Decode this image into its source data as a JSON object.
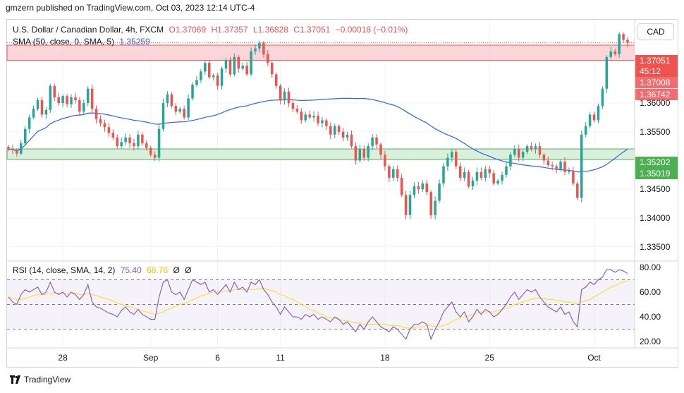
{
  "header": {
    "text": "gmzern published on TradingView.com, Oct 03, 2023 12:14 UTC-4"
  },
  "legend": {
    "symbol": "U.S. Dollar / Canadian Dollar, 4h, FXCM",
    "open": "O1.37069",
    "high": "H1.37357",
    "low": "L1.36828",
    "close": "C1.37051",
    "change": "−0.00018 (−0.01%)",
    "sma_label": "SMA (50, close, 0, SMA, 5)",
    "sma_value": "1.35259",
    "rsi_label": "RSI (14, close, SMA, 14, 2)",
    "rsi_value": "75.40",
    "rsi_sma_value": "68.76",
    "rsi_null1": "Ø",
    "rsi_null2": "Ø"
  },
  "currency_button": "CAD",
  "price_tags": {
    "last": "1.37051",
    "countdown": "45:12",
    "upper_zone": "1.37008",
    "upper_zone_low": "1.36742",
    "green_zone_top": "1.35202",
    "green_zone_bottom": "1.35019"
  },
  "footer": {
    "brand": "TradingView"
  },
  "colors": {
    "up": "#26a69a",
    "down": "#ef5350",
    "sma": "#2962ff",
    "rsi": "#7e57c2",
    "rsi_sma": "#f7e23c"
  },
  "chart_data": [
    {
      "type": "candlestick",
      "title": "U.S. Dollar / Canadian Dollar, 4h, FXCM",
      "y_ticks": [
        "1.36000",
        "1.35500",
        "1.34500",
        "1.34000",
        "1.33500"
      ],
      "ylim": [
        1.3325,
        1.3745
      ],
      "x_ticks": [
        {
          "label": "28",
          "index": 13
        },
        {
          "label": "Sep",
          "index": 34
        },
        {
          "label": "6",
          "index": 50
        },
        {
          "label": "11",
          "index": 65
        },
        {
          "label": "18",
          "index": 90
        },
        {
          "label": "25",
          "index": 115
        },
        {
          "label": "Oct",
          "index": 140
        }
      ],
      "zones": [
        {
          "name": "resistance",
          "from": 1.36742,
          "to": 1.37008,
          "color": "#f8c8cc"
        },
        {
          "name": "support",
          "from": 1.35019,
          "to": 1.35202,
          "color": "#cdebd0"
        }
      ],
      "closes": [
        1.352,
        1.3518,
        1.3512,
        1.353,
        1.3555,
        1.3575,
        1.359,
        1.3605,
        1.358,
        1.3588,
        1.363,
        1.361,
        1.36,
        1.3612,
        1.3598,
        1.361,
        1.3605,
        1.3585,
        1.36,
        1.3625,
        1.359,
        1.3572,
        1.3565,
        1.3558,
        1.3548,
        1.354,
        1.3525,
        1.3532,
        1.354,
        1.353,
        1.3525,
        1.3545,
        1.353,
        1.3522,
        1.351,
        1.3505,
        1.3555,
        1.36,
        1.3615,
        1.3595,
        1.3585,
        1.359,
        1.3575,
        1.3608,
        1.3632,
        1.364,
        1.3655,
        1.367,
        1.3645,
        1.3648,
        1.363,
        1.366,
        1.3675,
        1.365,
        1.368,
        1.366,
        1.3665,
        1.365,
        1.369,
        1.3695,
        1.3705,
        1.3685,
        1.367,
        1.365,
        1.363,
        1.3605,
        1.362,
        1.36,
        1.359,
        1.3585,
        1.357,
        1.358,
        1.3575,
        1.3578,
        1.3565,
        1.357,
        1.356,
        1.3545,
        1.356,
        1.355,
        1.354,
        1.3545,
        1.3525,
        1.35,
        1.352,
        1.3505,
        1.3525,
        1.354,
        1.3528,
        1.351,
        1.349,
        1.347,
        1.3485,
        1.347,
        1.344,
        1.3405,
        1.344,
        1.3455,
        1.345,
        1.346,
        1.3445,
        1.3405,
        1.343,
        1.346,
        1.349,
        1.3505,
        1.3515,
        1.349,
        1.347,
        1.348,
        1.3455,
        1.3465,
        1.348,
        1.347,
        1.3485,
        1.3478,
        1.346,
        1.3465,
        1.3475,
        1.349,
        1.351,
        1.352,
        1.3505,
        1.3515,
        1.3525,
        1.352,
        1.3525,
        1.351,
        1.35,
        1.3492,
        1.349,
        1.3485,
        1.3498,
        1.348,
        1.3482,
        1.346,
        1.3435,
        1.3545,
        1.356,
        1.358,
        1.357,
        1.3595,
        1.3625,
        1.368,
        1.369,
        1.3685,
        1.372,
        1.371,
        1.3705
      ]
    },
    {
      "type": "line",
      "title": "RSI (14, close, SMA, 14, 2)",
      "y_ticks": [
        "80.00",
        "60.00",
        "40.00",
        "20.00"
      ],
      "ylim": [
        15,
        85
      ],
      "bands": [
        70,
        50,
        30
      ],
      "series": [
        {
          "name": "RSI",
          "values": [
            56,
            52,
            50,
            58,
            62,
            60,
            62,
            64,
            58,
            60,
            68,
            60,
            58,
            60,
            56,
            60,
            58,
            54,
            58,
            66,
            52,
            48,
            47,
            45,
            43,
            42,
            40,
            45,
            48,
            44,
            42,
            46,
            42,
            40,
            38,
            38,
            56,
            68,
            70,
            60,
            58,
            60,
            54,
            62,
            70,
            68,
            66,
            68,
            60,
            62,
            58,
            62,
            66,
            60,
            68,
            62,
            64,
            60,
            68,
            66,
            70,
            62,
            58,
            52,
            48,
            42,
            48,
            44,
            40,
            40,
            38,
            42,
            40,
            42,
            38,
            40,
            38,
            36,
            40,
            38,
            34,
            36,
            32,
            28,
            34,
            30,
            36,
            40,
            36,
            32,
            30,
            28,
            32,
            30,
            26,
            22,
            30,
            34,
            34,
            36,
            34,
            22,
            30,
            36,
            44,
            48,
            52,
            44,
            40,
            44,
            36,
            40,
            46,
            42,
            46,
            44,
            40,
            42,
            46,
            50,
            56,
            60,
            54,
            58,
            62,
            60,
            62,
            56,
            52,
            48,
            46,
            44,
            48,
            42,
            44,
            36,
            32,
            62,
            64,
            68,
            66,
            70,
            72,
            78,
            78,
            76,
            78,
            77,
            75
          ]
        },
        {
          "name": "SMA",
          "values": [
            56,
            55,
            54,
            54,
            55,
            56,
            57,
            58,
            58,
            58,
            59,
            59,
            59,
            59,
            59,
            59,
            59,
            58,
            58,
            59,
            58,
            57,
            56,
            55,
            54,
            53,
            51,
            50,
            49,
            48,
            47,
            46,
            45,
            44,
            43,
            42,
            43,
            44,
            46,
            47,
            49,
            50,
            51,
            52,
            54,
            55,
            57,
            58,
            59,
            60,
            60,
            60,
            61,
            61,
            62,
            62,
            62,
            62,
            62,
            62,
            63,
            63,
            62,
            61,
            60,
            58,
            57,
            55,
            54,
            52,
            50,
            48,
            46,
            45,
            43,
            42,
            40,
            39,
            39,
            38,
            37,
            37,
            36,
            35,
            35,
            34,
            34,
            34,
            34,
            34,
            34,
            33,
            33,
            33,
            32,
            31,
            31,
            31,
            32,
            32,
            33,
            33,
            32,
            32,
            33,
            34,
            36,
            38,
            39,
            40,
            41,
            42,
            43,
            44,
            44,
            44,
            44,
            45,
            46,
            47,
            48,
            50,
            51,
            52,
            53,
            54,
            55,
            55,
            55,
            54,
            54,
            53,
            53,
            52,
            52,
            51,
            51,
            52,
            53,
            54,
            56,
            58,
            60,
            62,
            64,
            65,
            67,
            68,
            69
          ]
        }
      ]
    }
  ]
}
